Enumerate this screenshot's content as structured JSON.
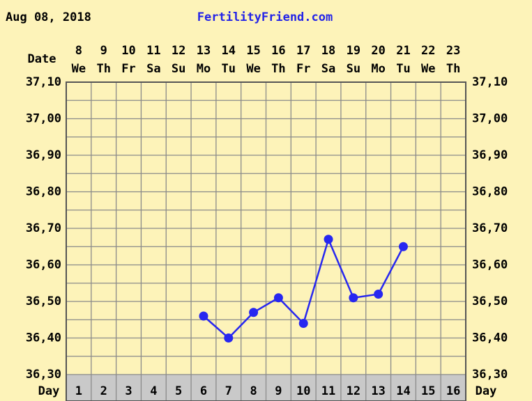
{
  "chart_data": {
    "type": "line",
    "date": "Aug 08, 2018",
    "title": "FertilityFriend.com",
    "date_label": "Date",
    "day_label": "Day",
    "dates": [
      "8",
      "9",
      "10",
      "11",
      "12",
      "13",
      "14",
      "15",
      "16",
      "17",
      "18",
      "19",
      "20",
      "21",
      "22",
      "23"
    ],
    "weekdays": [
      "We",
      "Th",
      "Fr",
      "Sa",
      "Su",
      "Mo",
      "Tu",
      "We",
      "Th",
      "Fr",
      "Sa",
      "Su",
      "Mo",
      "Tu",
      "We",
      "Th"
    ],
    "categories": [
      "1",
      "2",
      "3",
      "4",
      "5",
      "6",
      "7",
      "8",
      "9",
      "10",
      "11",
      "12",
      "13",
      "14",
      "15",
      "16"
    ],
    "series": [
      {
        "color": "#2727f0",
        "values": [
          null,
          null,
          null,
          null,
          null,
          36.46,
          36.4,
          36.47,
          36.51,
          36.44,
          36.67,
          36.51,
          36.52,
          36.65,
          null,
          null
        ]
      }
    ],
    "ylim": [
      36.3,
      37.1
    ],
    "yticks": [
      {
        "value": 36.3,
        "label": "36,30"
      },
      {
        "value": 36.4,
        "label": "36,40"
      },
      {
        "value": 36.5,
        "label": "36,50"
      },
      {
        "value": 36.6,
        "label": "36,60"
      },
      {
        "value": 36.7,
        "label": "36,70"
      },
      {
        "value": 36.8,
        "label": "36,80"
      },
      {
        "value": 36.9,
        "label": "36,90"
      },
      {
        "value": 37.0,
        "label": "37,00"
      },
      {
        "value": 37.1,
        "label": "37,10"
      }
    ],
    "y_minor_ticks": [
      36.35,
      36.45,
      36.55,
      36.65,
      36.75,
      36.85,
      36.95,
      37.05
    ],
    "grid": true
  }
}
